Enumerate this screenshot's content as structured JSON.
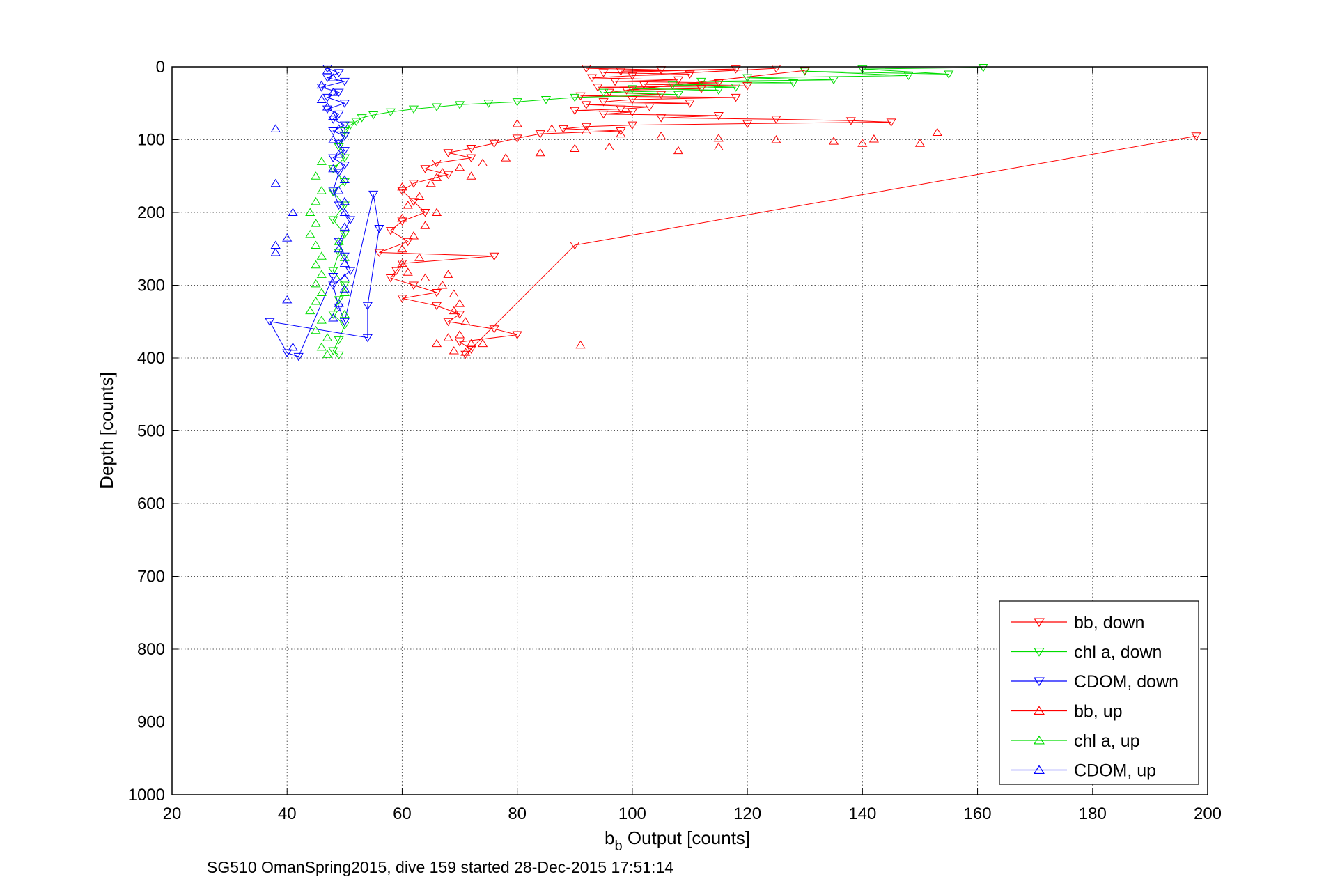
{
  "chart_data": {
    "type": "scatter",
    "title": "",
    "xlabel_main": "b",
    "xlabel_sub": "b",
    "xlabel_rest": " Output [counts]",
    "ylabel": "Depth [counts]",
    "caption": "SG510 OmanSpring2015, dive 159 started 28-Dec-2015 17:51:14",
    "xlim": [
      20,
      200
    ],
    "ylim": [
      0,
      1000
    ],
    "y_reversed": true,
    "grid": true,
    "legend_position": "bottom-right",
    "xticks": [
      "20",
      "40",
      "60",
      "80",
      "100",
      "120",
      "140",
      "160",
      "180",
      "200"
    ],
    "yticks": [
      "0",
      "100",
      "200",
      "300",
      "400",
      "500",
      "600",
      "700",
      "800",
      "900",
      "1000"
    ],
    "series": [
      {
        "name": "bb, down",
        "color": "#ff0000",
        "marker": "triangle-down",
        "connected": true,
        "points": [
          [
            92,
            2
          ],
          [
            105,
            4
          ],
          [
            98,
            6
          ],
          [
            118,
            3
          ],
          [
            95,
            8
          ],
          [
            110,
            10
          ],
          [
            100,
            12
          ],
          [
            125,
            2
          ],
          [
            93,
            15
          ],
          [
            108,
            18
          ],
          [
            97,
            20
          ],
          [
            115,
            22
          ],
          [
            102,
            24
          ],
          [
            120,
            26
          ],
          [
            94,
            28
          ],
          [
            112,
            30
          ],
          [
            99,
            32
          ],
          [
            130,
            5
          ],
          [
            96,
            35
          ],
          [
            105,
            38
          ],
          [
            91,
            40
          ],
          [
            118,
            42
          ],
          [
            100,
            45
          ],
          [
            95,
            48
          ],
          [
            110,
            50
          ],
          [
            92,
            52
          ],
          [
            103,
            55
          ],
          [
            98,
            58
          ],
          [
            90,
            60
          ],
          [
            100,
            62
          ],
          [
            95,
            65
          ],
          [
            115,
            67
          ],
          [
            105,
            70
          ],
          [
            125,
            72
          ],
          [
            138,
            74
          ],
          [
            145,
            76
          ],
          [
            120,
            78
          ],
          [
            100,
            80
          ],
          [
            92,
            82
          ],
          [
            88,
            85
          ],
          [
            98,
            88
          ],
          [
            84,
            92
          ],
          [
            80,
            98
          ],
          [
            76,
            105
          ],
          [
            72,
            112
          ],
          [
            68,
            118
          ],
          [
            72,
            125
          ],
          [
            66,
            132
          ],
          [
            64,
            140
          ],
          [
            68,
            148
          ],
          [
            62,
            160
          ],
          [
            60,
            170
          ],
          [
            62,
            185
          ],
          [
            64,
            200
          ],
          [
            60,
            212
          ],
          [
            58,
            225
          ],
          [
            61,
            240
          ],
          [
            56,
            255
          ],
          [
            76,
            260
          ],
          [
            60,
            270
          ],
          [
            59,
            280
          ],
          [
            58,
            290
          ],
          [
            62,
            300
          ],
          [
            66,
            310
          ],
          [
            60,
            318
          ],
          [
            66,
            328
          ],
          [
            70,
            340
          ],
          [
            68,
            350
          ],
          [
            76,
            360
          ],
          [
            80,
            368
          ],
          [
            70,
            378
          ],
          [
            72,
            388
          ],
          [
            71,
            395
          ],
          [
            90,
            245
          ],
          [
            198,
            95
          ]
        ]
      },
      {
        "name": "chl a, down",
        "color": "#00dd00",
        "marker": "triangle-down",
        "connected": true,
        "points": [
          [
            161,
            1
          ],
          [
            140,
            3
          ],
          [
            155,
            10
          ],
          [
            130,
            6
          ],
          [
            148,
            12
          ],
          [
            120,
            15
          ],
          [
            135,
            18
          ],
          [
            112,
            20
          ],
          [
            128,
            22
          ],
          [
            107,
            25
          ],
          [
            118,
            28
          ],
          [
            100,
            30
          ],
          [
            115,
            32
          ],
          [
            95,
            35
          ],
          [
            108,
            38
          ],
          [
            90,
            42
          ],
          [
            85,
            45
          ],
          [
            80,
            48
          ],
          [
            75,
            50
          ],
          [
            70,
            52
          ],
          [
            66,
            55
          ],
          [
            62,
            58
          ],
          [
            58,
            62
          ],
          [
            55,
            66
          ],
          [
            53,
            70
          ],
          [
            52,
            75
          ],
          [
            51,
            80
          ],
          [
            50,
            88
          ],
          [
            50,
            95
          ],
          [
            49,
            110
          ],
          [
            50,
            125
          ],
          [
            48,
            140
          ],
          [
            50,
            158
          ],
          [
            48,
            172
          ],
          [
            50,
            190
          ],
          [
            48,
            210
          ],
          [
            50,
            230
          ],
          [
            49,
            255
          ],
          [
            48,
            280
          ],
          [
            50,
            300
          ],
          [
            49,
            320
          ],
          [
            48,
            340
          ],
          [
            50,
            355
          ],
          [
            49,
            375
          ],
          [
            48,
            390
          ],
          [
            49,
            396
          ]
        ]
      },
      {
        "name": "CDOM, down",
        "color": "#0000ff",
        "marker": "triangle-down",
        "connected": true,
        "points": [
          [
            47,
            2
          ],
          [
            49,
            8
          ],
          [
            47,
            15
          ],
          [
            50,
            20
          ],
          [
            46,
            28
          ],
          [
            49,
            35
          ],
          [
            47,
            42
          ],
          [
            50,
            50
          ],
          [
            47,
            58
          ],
          [
            49,
            65
          ],
          [
            48,
            72
          ],
          [
            50,
            80
          ],
          [
            48,
            88
          ],
          [
            50,
            95
          ],
          [
            49,
            105
          ],
          [
            50,
            115
          ],
          [
            48,
            125
          ],
          [
            50,
            135
          ],
          [
            49,
            145
          ],
          [
            48,
            170
          ],
          [
            49,
            190
          ],
          [
            51,
            210
          ],
          [
            49,
            240
          ],
          [
            50,
            260
          ],
          [
            51,
            280
          ],
          [
            48,
            300
          ],
          [
            49,
            330
          ],
          [
            50,
            350
          ],
          [
            55,
            175
          ],
          [
            56,
            222
          ],
          [
            54,
            328
          ],
          [
            54,
            372
          ],
          [
            37,
            350
          ],
          [
            40,
            393
          ],
          [
            42,
            398
          ],
          [
            48,
            288
          ]
        ]
      },
      {
        "name": "bb, up",
        "color": "#ff0000",
        "marker": "triangle-up",
        "connected": false,
        "points": [
          [
            80,
            78
          ],
          [
            86,
            85
          ],
          [
            92,
            88
          ],
          [
            98,
            92
          ],
          [
            105,
            95
          ],
          [
            115,
            98
          ],
          [
            125,
            100
          ],
          [
            135,
            102
          ],
          [
            142,
            99
          ],
          [
            150,
            105
          ],
          [
            153,
            90
          ],
          [
            140,
            105
          ],
          [
            115,
            110
          ],
          [
            108,
            115
          ],
          [
            96,
            110
          ],
          [
            90,
            112
          ],
          [
            84,
            118
          ],
          [
            78,
            125
          ],
          [
            74,
            132
          ],
          [
            70,
            138
          ],
          [
            67,
            145
          ],
          [
            66,
            152
          ],
          [
            72,
            150
          ],
          [
            65,
            160
          ],
          [
            60,
            165
          ],
          [
            63,
            178
          ],
          [
            61,
            190
          ],
          [
            66,
            200
          ],
          [
            60,
            208
          ],
          [
            64,
            218
          ],
          [
            62,
            232
          ],
          [
            60,
            250
          ],
          [
            63,
            262
          ],
          [
            60,
            270
          ],
          [
            61,
            282
          ],
          [
            64,
            290
          ],
          [
            68,
            285
          ],
          [
            67,
            300
          ],
          [
            69,
            312
          ],
          [
            70,
            325
          ],
          [
            69,
            335
          ],
          [
            71,
            350
          ],
          [
            70,
            368
          ],
          [
            68,
            372
          ],
          [
            66,
            380
          ],
          [
            72,
            380
          ],
          [
            71,
            392
          ],
          [
            91,
            382
          ],
          [
            74,
            380
          ],
          [
            69,
            390
          ]
        ]
      },
      {
        "name": "chl a, up",
        "color": "#00dd00",
        "marker": "triangle-up",
        "connected": false,
        "points": [
          [
            46,
            130
          ],
          [
            45,
            150
          ],
          [
            46,
            170
          ],
          [
            45,
            185
          ],
          [
            44,
            200
          ],
          [
            45,
            215
          ],
          [
            44,
            230
          ],
          [
            45,
            245
          ],
          [
            46,
            260
          ],
          [
            45,
            272
          ],
          [
            46,
            285
          ],
          [
            45,
            298
          ],
          [
            46,
            310
          ],
          [
            45,
            322
          ],
          [
            44,
            335
          ],
          [
            46,
            348
          ],
          [
            45,
            362
          ],
          [
            47,
            372
          ],
          [
            46,
            385
          ],
          [
            47,
            395
          ],
          [
            49,
            240
          ],
          [
            50,
            262
          ],
          [
            50,
            310
          ],
          [
            50,
            340
          ]
        ]
      },
      {
        "name": "CDOM, up",
        "color": "#0000ff",
        "marker": "triangle-up",
        "connected": false,
        "points": [
          [
            47,
            5
          ],
          [
            48,
            15
          ],
          [
            46,
            25
          ],
          [
            48,
            35
          ],
          [
            46,
            45
          ],
          [
            47,
            55
          ],
          [
            48,
            68
          ],
          [
            49,
            85
          ],
          [
            48,
            100
          ],
          [
            49,
            120
          ],
          [
            48,
            140
          ],
          [
            50,
            155
          ],
          [
            49,
            170
          ],
          [
            50,
            185
          ],
          [
            50,
            200
          ],
          [
            50,
            220
          ],
          [
            49,
            250
          ],
          [
            50,
            270
          ],
          [
            50,
            290
          ],
          [
            50,
            305
          ],
          [
            49,
            325
          ],
          [
            48,
            345
          ],
          [
            38,
            85
          ],
          [
            38,
            160
          ],
          [
            41,
            200
          ],
          [
            40,
            235
          ],
          [
            38,
            245
          ],
          [
            38,
            255
          ],
          [
            40,
            320
          ],
          [
            41,
            385
          ]
        ]
      }
    ]
  }
}
